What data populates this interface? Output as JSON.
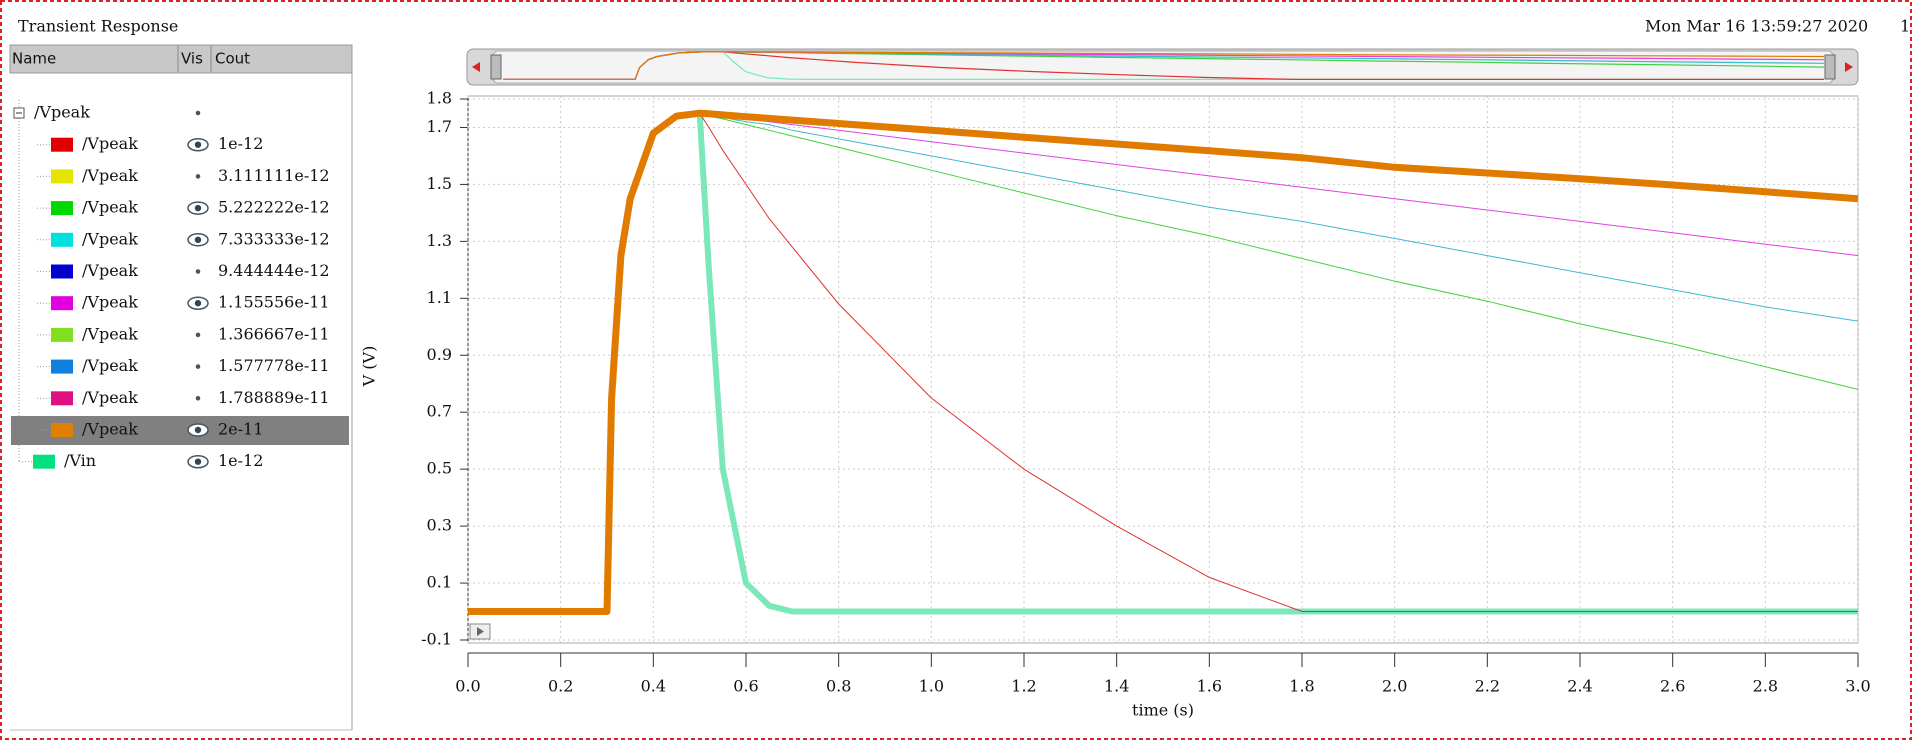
{
  "window_title": "Transient Response",
  "timestamp": "Mon Mar 16 13:59:27 2020",
  "page": "1",
  "tree": {
    "columns": [
      "Name",
      "Vis",
      "Cout"
    ],
    "rows": [
      {
        "name": "/Vpeak",
        "level": 0,
        "vis": "dot"
      },
      {
        "name": "/Vpeak",
        "level": 1,
        "color": "#e00000",
        "vis": "eye",
        "cout": "1e-12"
      },
      {
        "name": "/Vpeak",
        "level": 1,
        "color": "#e4e400",
        "vis": "dot",
        "cout": "3.111111e-12"
      },
      {
        "name": "/Vpeak",
        "level": 1,
        "color": "#00d800",
        "vis": "eye",
        "cout": "5.222222e-12"
      },
      {
        "name": "/Vpeak",
        "level": 1,
        "color": "#00e0e0",
        "vis": "eye",
        "cout": "7.333333e-12"
      },
      {
        "name": "/Vpeak",
        "level": 1,
        "color": "#0000d0",
        "vis": "dot",
        "cout": "9.444444e-12"
      },
      {
        "name": "/Vpeak",
        "level": 1,
        "color": "#e000e0",
        "vis": "eye",
        "cout": "1.155556e-11"
      },
      {
        "name": "/Vpeak",
        "level": 1,
        "color": "#80e020",
        "vis": "dot",
        "cout": "1.366667e-11"
      },
      {
        "name": "/Vpeak",
        "level": 1,
        "color": "#1080e0",
        "vis": "dot",
        "cout": "1.577778e-11"
      },
      {
        "name": "/Vpeak",
        "level": 1,
        "color": "#e01080",
        "vis": "dot",
        "cout": "1.788889e-11"
      },
      {
        "name": "/Vpeak",
        "level": 1,
        "color": "#e08000",
        "vis": "eye",
        "cout": "2e-11",
        "selected": true
      },
      {
        "name": "/Vin",
        "level": 0,
        "color": "#00e080",
        "vis": "eye",
        "cout": "1e-12"
      }
    ]
  },
  "chart_data": {
    "type": "line",
    "x_label": "time (s)",
    "y_label": "V (V)",
    "xlim": [
      0,
      3
    ],
    "ylim": [
      -0.1,
      1.8
    ],
    "xticks": [
      {
        "value": 0,
        "label": "0.0"
      },
      0.2,
      0.4,
      0.6,
      0.8,
      {
        "value": 1,
        "label": "1.0"
      },
      1.2,
      1.4,
      1.6,
      1.8,
      {
        "value": 2,
        "label": "2.0"
      },
      2.2,
      2.4,
      2.6,
      2.8,
      {
        "value": 3,
        "label": "3.0"
      }
    ],
    "yticks": [
      -0.1,
      0.1,
      0.3,
      0.5,
      0.7,
      0.9,
      1.1,
      1.3,
      1.5,
      1.7,
      1.8
    ],
    "grid": true,
    "x": [
      0,
      0.1,
      0.2,
      0.3,
      0.31,
      0.33,
      0.35,
      0.4,
      0.45,
      0.5,
      0.52,
      0.55,
      0.6,
      0.65,
      0.7,
      0.8,
      1.0,
      1.2,
      1.4,
      1.6,
      1.8,
      2.0,
      2.2,
      2.4,
      2.6,
      2.8,
      3.0
    ],
    "series": [
      {
        "color": "#7ae8b8",
        "line_width": 6,
        "values": [
          0,
          0,
          0,
          0,
          0.75,
          1.25,
          1.45,
          1.68,
          1.74,
          1.75,
          1.2,
          0.5,
          0.1,
          0.02,
          0,
          0,
          0,
          0,
          0,
          0,
          0,
          0,
          0,
          0,
          0,
          0,
          0
        ]
      },
      {
        "color": "#e03030",
        "line_width": 1,
        "values": [
          0,
          0,
          0,
          0,
          0.75,
          1.25,
          1.45,
          1.68,
          1.74,
          1.75,
          1.7,
          1.62,
          1.5,
          1.38,
          1.28,
          1.08,
          0.75,
          0.5,
          0.3,
          0.12,
          0,
          0,
          0,
          0,
          0,
          0,
          0
        ]
      },
      {
        "color": "#40d040",
        "line_width": 1,
        "values": [
          0,
          0,
          0,
          0,
          0.75,
          1.25,
          1.45,
          1.68,
          1.74,
          1.75,
          1.74,
          1.73,
          1.71,
          1.69,
          1.67,
          1.63,
          1.55,
          1.47,
          1.39,
          1.32,
          1.24,
          1.16,
          1.09,
          1.01,
          0.94,
          0.86,
          0.78
        ]
      },
      {
        "color": "#40b8d0",
        "line_width": 1,
        "values": [
          0,
          0,
          0,
          0,
          0.75,
          1.25,
          1.45,
          1.68,
          1.74,
          1.75,
          1.744,
          1.735,
          1.72,
          1.71,
          1.69,
          1.66,
          1.6,
          1.54,
          1.48,
          1.42,
          1.37,
          1.31,
          1.25,
          1.19,
          1.13,
          1.07,
          1.02
        ]
      },
      {
        "color": "#e040e0",
        "line_width": 1,
        "values": [
          0,
          0,
          0,
          0,
          0.75,
          1.25,
          1.45,
          1.68,
          1.74,
          1.75,
          1.746,
          1.74,
          1.73,
          1.72,
          1.71,
          1.69,
          1.65,
          1.61,
          1.57,
          1.53,
          1.49,
          1.45,
          1.41,
          1.37,
          1.33,
          1.29,
          1.25
        ]
      },
      {
        "color": "#e07b00",
        "line_width": 7,
        "values": [
          0,
          0,
          0,
          0,
          0.75,
          1.25,
          1.45,
          1.68,
          1.74,
          1.75,
          1.748,
          1.744,
          1.738,
          1.732,
          1.726,
          1.714,
          1.69,
          1.666,
          1.642,
          1.618,
          1.594,
          1.56,
          1.54,
          1.52,
          1.498,
          1.474,
          1.45
        ]
      }
    ]
  }
}
